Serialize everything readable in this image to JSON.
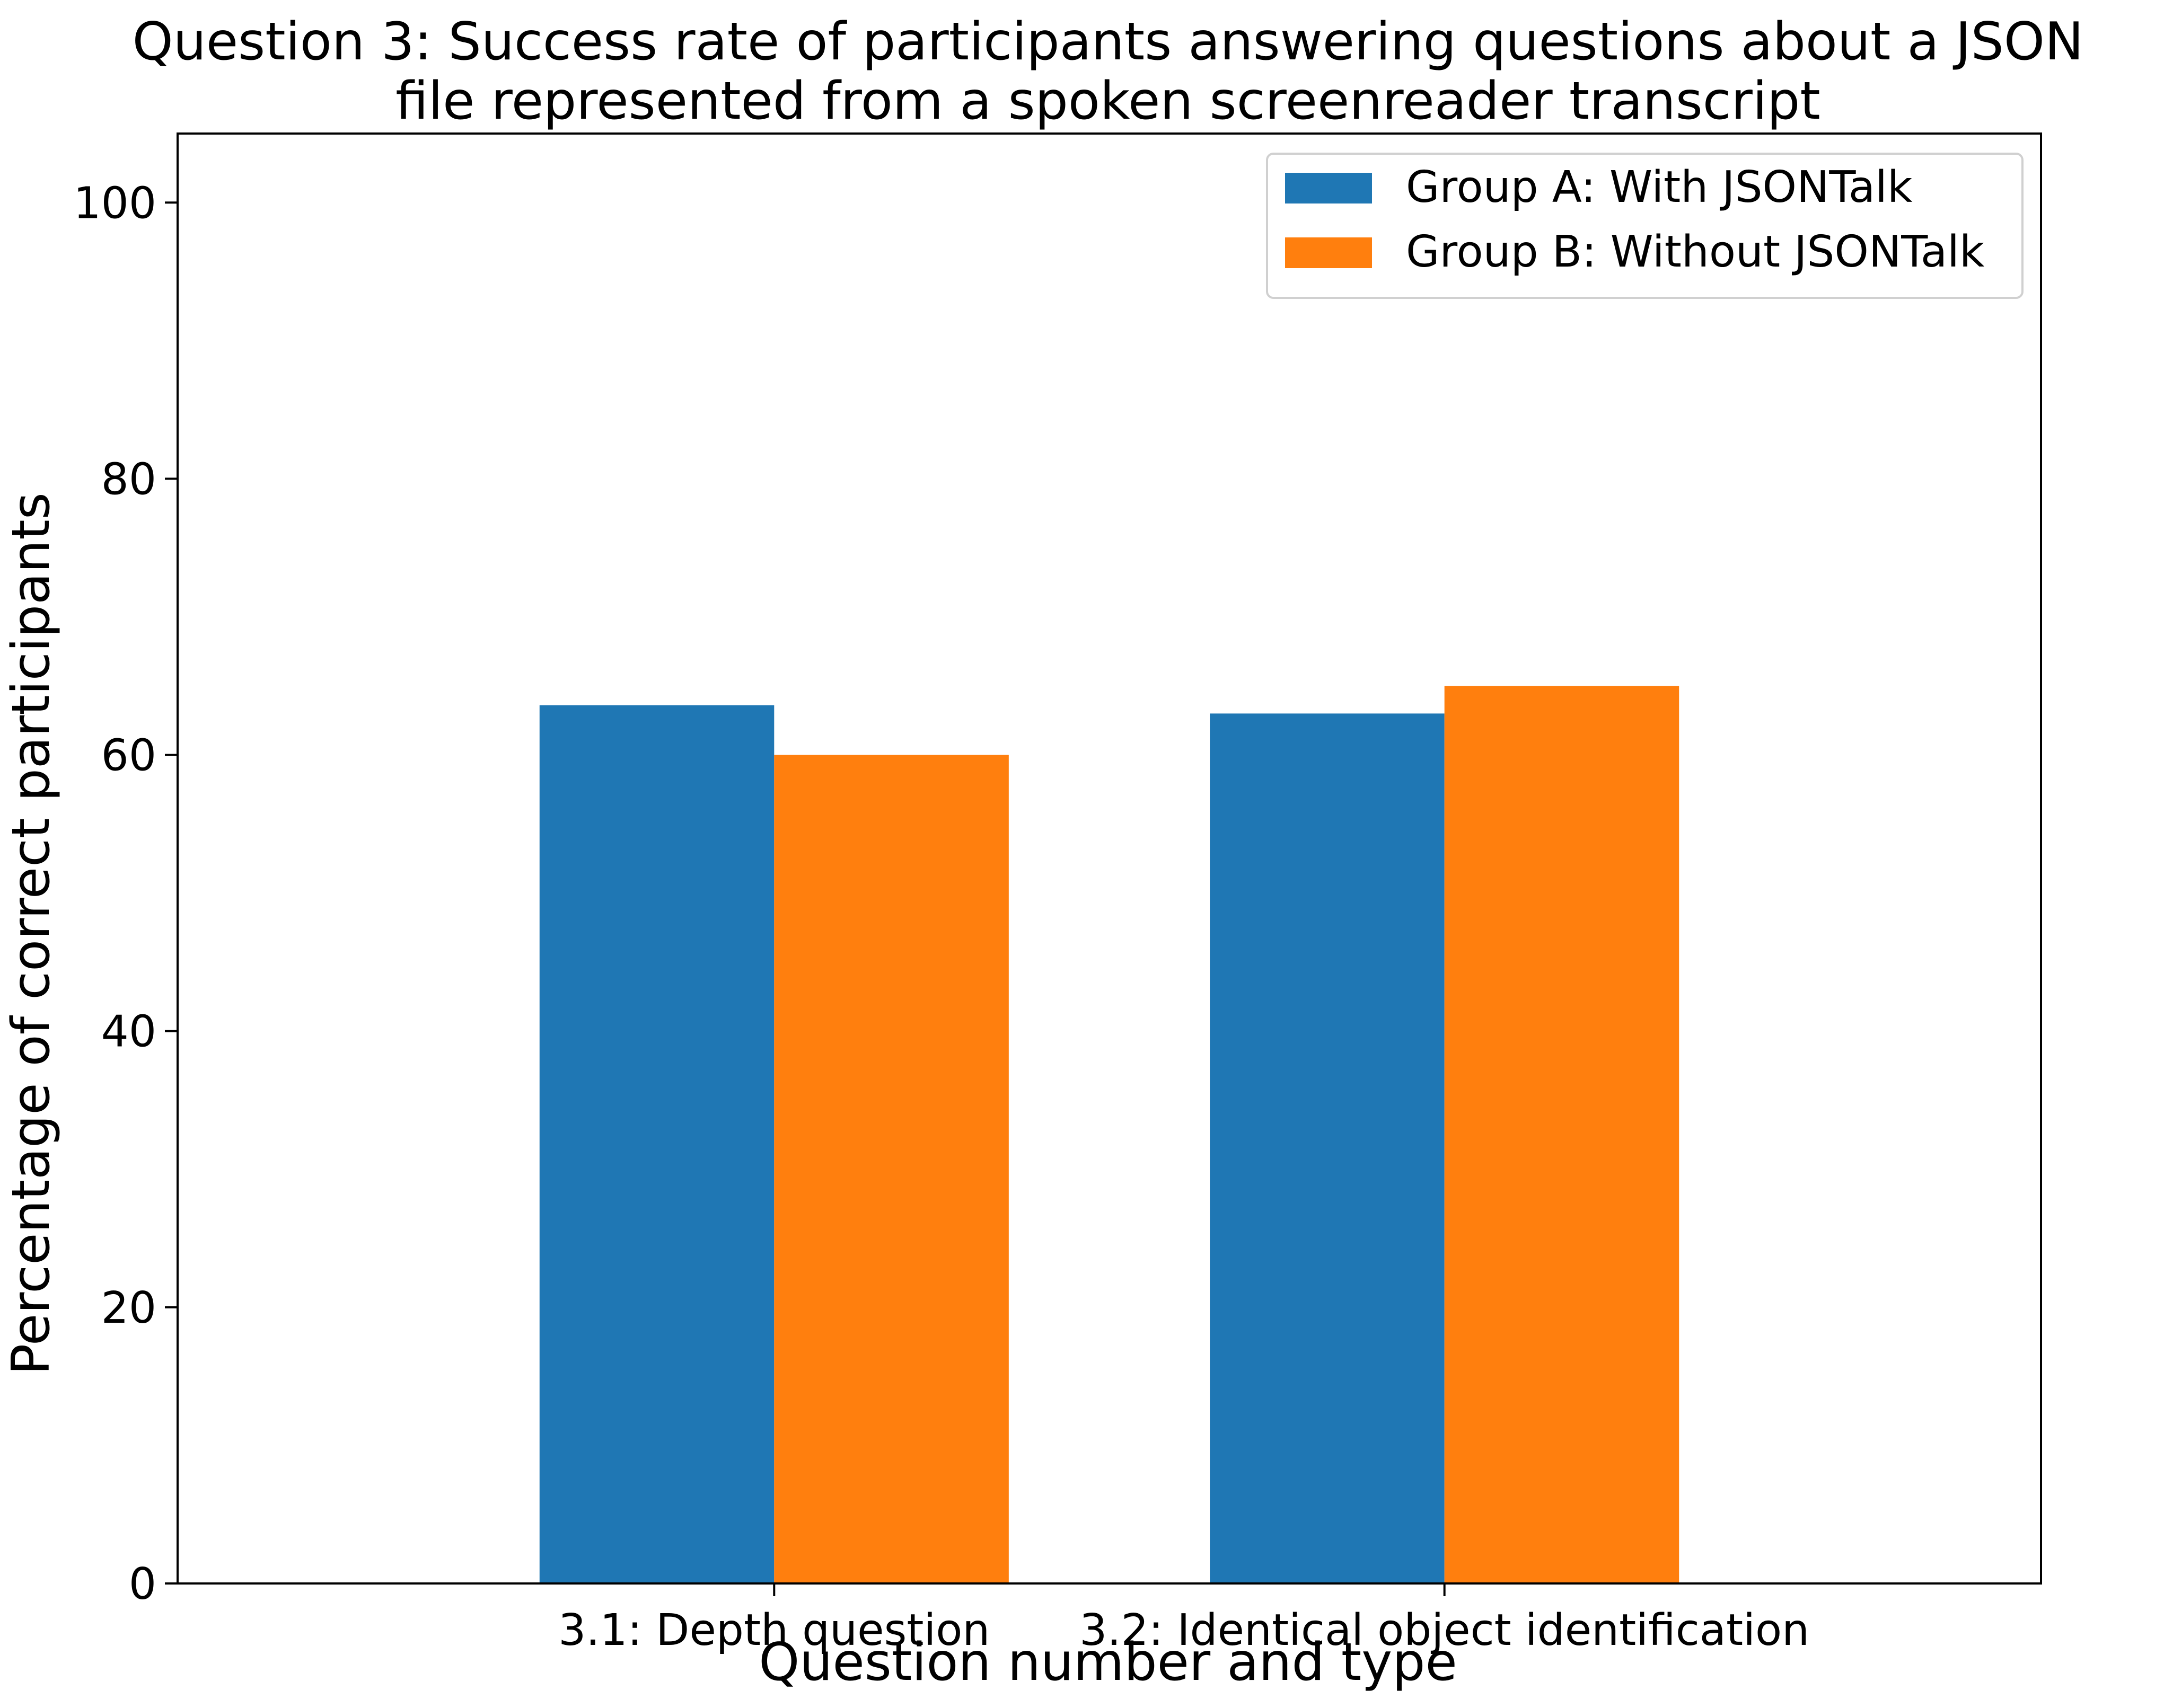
{
  "chart_data": {
    "type": "bar",
    "title_lines": [
      "Question 3: Success rate of participants answering questions about a JSON",
      "file represented from a spoken screenreader transcript"
    ],
    "xlabel": "Question number and type",
    "ylabel": "Percentage of correct participants",
    "categories": [
      "3.1: Depth question",
      "3.2: Identical object identification"
    ],
    "series": [
      {
        "name": "Group A: With JSONTalk",
        "color": "#1f77b4",
        "values": [
          63.6,
          63.0
        ]
      },
      {
        "name": "Group B: Without JSONTalk",
        "color": "#ff7f0e",
        "values": [
          60.0,
          65.0
        ]
      }
    ],
    "ylim": [
      0,
      105
    ],
    "yticks": [
      0,
      20,
      40,
      60,
      80,
      100
    ],
    "grid": false,
    "legend_position": "top-right"
  }
}
